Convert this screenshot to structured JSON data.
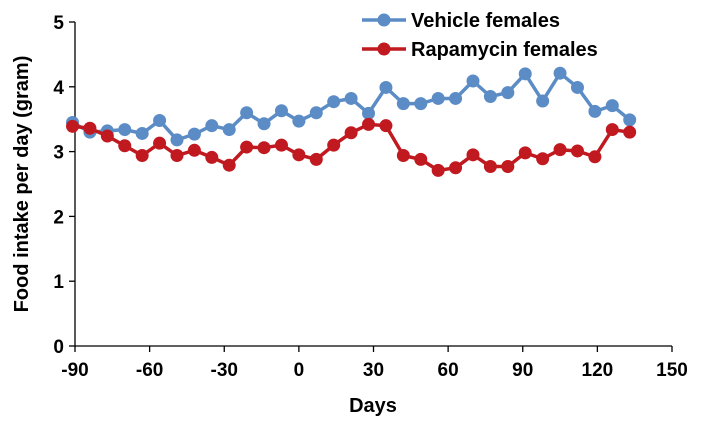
{
  "chart_data": {
    "type": "line",
    "xlabel": "Days",
    "ylabel": "Food intake per day (gram)",
    "xlim": [
      -90,
      150
    ],
    "ylim": [
      0,
      5
    ],
    "xticks": [
      "-90",
      "-60",
      "-30",
      "0",
      "30",
      "60",
      "90",
      "120",
      "150"
    ],
    "yticks": [
      "0",
      "1",
      "2",
      "3",
      "4",
      "5"
    ],
    "legend_position": "top-right",
    "grid": false,
    "series": [
      {
        "name": "Vehicle females",
        "color": "#5b8cc6",
        "x": [
          -91,
          -84,
          -77,
          -70,
          -63,
          -56,
          -49,
          -42,
          -35,
          -28,
          -21,
          -14,
          -7,
          0,
          7,
          14,
          21,
          28,
          35,
          42,
          49,
          56,
          63,
          70,
          77,
          84,
          91,
          98,
          105,
          112,
          119,
          126,
          133
        ],
        "y": [
          3.45,
          3.3,
          3.32,
          3.34,
          3.28,
          3.48,
          3.18,
          3.27,
          3.4,
          3.34,
          3.6,
          3.43,
          3.63,
          3.47,
          3.6,
          3.77,
          3.82,
          3.59,
          3.99,
          3.74,
          3.74,
          3.82,
          3.82,
          4.09,
          3.85,
          3.91,
          4.2,
          3.78,
          4.21,
          3.99,
          3.62,
          3.71,
          3.49
        ]
      },
      {
        "name": "Rapamycin females",
        "color": "#c0191f",
        "x": [
          -91,
          -84,
          -77,
          -70,
          -63,
          -56,
          -49,
          -42,
          -35,
          -28,
          -21,
          -14,
          -7,
          0,
          7,
          14,
          21,
          28,
          35,
          42,
          49,
          56,
          63,
          70,
          77,
          84,
          91,
          98,
          105,
          112,
          119,
          126,
          133
        ],
        "y": [
          3.39,
          3.36,
          3.24,
          3.09,
          2.94,
          3.13,
          2.94,
          3.02,
          2.91,
          2.79,
          3.07,
          3.06,
          3.1,
          2.95,
          2.88,
          3.1,
          3.29,
          3.42,
          3.4,
          2.94,
          2.88,
          2.71,
          2.75,
          2.95,
          2.77,
          2.77,
          2.98,
          2.89,
          3.03,
          3.01,
          2.92,
          3.34,
          3.3
        ]
      }
    ]
  }
}
